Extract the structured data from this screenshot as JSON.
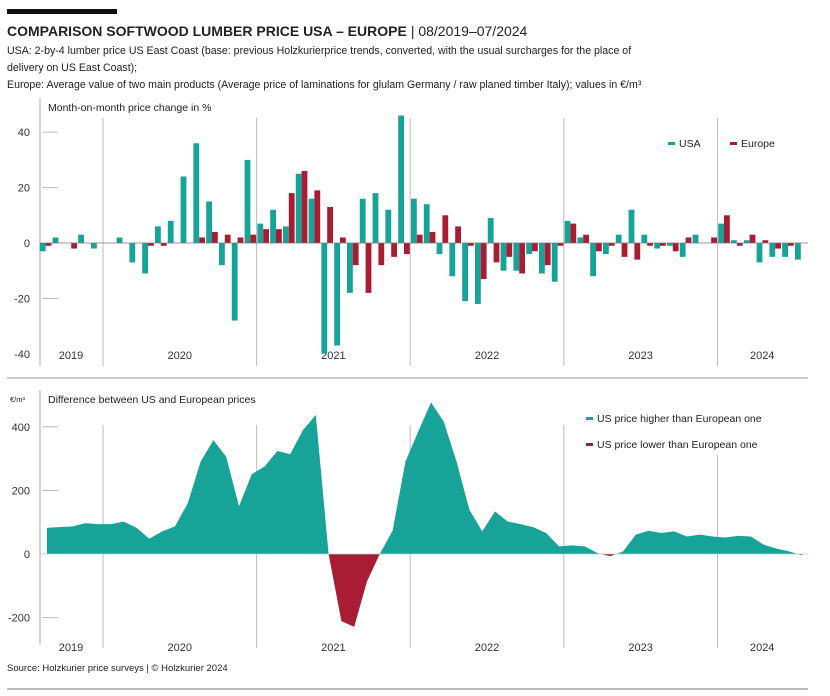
{
  "header": {
    "title": "COMPARISON SOFTWOOD LUMBER PRICE USA – EUROPE",
    "period": "| 08/2019–07/2024",
    "desc_line1": "USA: 2-by-4 lumber price US East Coast (base: previous Holzkurierprice trends, converted, with the usual surcharges for the place of",
    "desc_line2": "delivery on US East Coast);",
    "desc_line3": "Europe: Average value of two main products (Average price of laminations for glulam Germany / raw planed timber Italy); values in €/m³"
  },
  "footer": {
    "source": "Source: Holzkurier price surveys | © Holzkurier 2024"
  },
  "colors": {
    "teal": "#17a398",
    "red": "#a81d33",
    "axis": "#bbbbbb"
  },
  "chart_data": [
    {
      "type": "bar",
      "title": "Month-on-month price change in %",
      "ylabel": "",
      "ylim": [
        -40,
        46
      ],
      "yticks": [
        "40",
        "20",
        "0",
        "-20",
        "-40"
      ],
      "ytick_values": [
        40,
        20,
        0,
        -20,
        -40
      ],
      "year_labels": [
        "2019",
        "2020",
        "2021",
        "2022",
        "2023",
        "2024"
      ],
      "legend": "top-right",
      "categories": [
        "2019-08",
        "2019-09",
        "2019-10",
        "2019-11",
        "2019-12",
        "2020-01",
        "2020-02",
        "2020-03",
        "2020-04",
        "2020-05",
        "2020-06",
        "2020-07",
        "2020-08",
        "2020-09",
        "2020-10",
        "2020-11",
        "2020-12",
        "2021-01",
        "2021-02",
        "2021-03",
        "2021-04",
        "2021-05",
        "2021-06",
        "2021-07",
        "2021-08",
        "2021-09",
        "2021-10",
        "2021-11",
        "2021-12",
        "2022-01",
        "2022-02",
        "2022-03",
        "2022-04",
        "2022-05",
        "2022-06",
        "2022-07",
        "2022-08",
        "2022-09",
        "2022-10",
        "2022-11",
        "2022-12",
        "2023-01",
        "2023-02",
        "2023-03",
        "2023-04",
        "2023-05",
        "2023-06",
        "2023-07",
        "2023-08",
        "2023-09",
        "2023-10",
        "2023-11",
        "2023-12",
        "2024-01",
        "2024-02",
        "2024-03",
        "2024-04",
        "2024-05",
        "2024-06",
        "2024-07"
      ],
      "series": [
        {
          "name": "USA",
          "color": "#17a398",
          "values": [
            -3,
            2,
            0,
            3,
            -2,
            0,
            2,
            -7,
            -11,
            6,
            8,
            24,
            36,
            15,
            -8,
            -28,
            30,
            7,
            12,
            6,
            25,
            16,
            -40,
            -37,
            -18,
            16,
            18,
            12,
            46,
            16,
            14,
            -4,
            -12,
            -21,
            -22,
            9,
            -10,
            -10,
            -4,
            -11,
            -14,
            8,
            2,
            -12,
            -4,
            3,
            12,
            3,
            -2,
            -1,
            -5,
            3,
            0,
            7,
            1,
            1,
            -7,
            -5,
            -5,
            -6
          ]
        },
        {
          "name": "Europe",
          "color": "#a81d33",
          "values": [
            -1,
            0,
            -2,
            0,
            0,
            0,
            0,
            0,
            -1,
            -1,
            0,
            0,
            2,
            4,
            3,
            2,
            3,
            5,
            5,
            18,
            26,
            19,
            13,
            2,
            -8,
            -18,
            -8,
            -5,
            -4,
            3,
            4,
            10,
            6,
            -1,
            -13,
            -7,
            -5,
            -11,
            -3,
            -8,
            -1,
            7,
            3,
            -3,
            -1,
            -5,
            -6,
            -1,
            -1,
            -3,
            2,
            0,
            2,
            10,
            -1,
            3,
            1,
            -2,
            -1,
            0
          ]
        }
      ]
    },
    {
      "type": "area",
      "title": "Difference between US and European prices",
      "ylabel": "€/m³",
      "ylim": [
        -230,
        480
      ],
      "yticks": [
        "400",
        "200",
        "0",
        "-200"
      ],
      "ytick_values": [
        400,
        200,
        0,
        -200
      ],
      "year_labels": [
        "2019",
        "2020",
        "2021",
        "2022",
        "2023",
        "2024"
      ],
      "legend": "top-right",
      "legend_entries": [
        "US price higher than European one",
        "US price lower than European one"
      ],
      "categories_ref": "same months as first chart",
      "values": [
        82,
        85,
        87,
        97,
        94,
        94,
        102,
        82,
        48,
        71,
        87,
        160,
        290,
        358,
        306,
        150,
        251,
        275,
        324,
        314,
        390,
        437,
        0,
        -211,
        -229,
        -86,
        0,
        73,
        290,
        385,
        477,
        416,
        290,
        139,
        71,
        134,
        102,
        94,
        84,
        66,
        24,
        27,
        24,
        3,
        -7,
        8,
        61,
        73,
        66,
        71,
        55,
        61,
        55,
        52,
        57,
        55,
        29,
        17,
        8,
        -4
      ]
    }
  ]
}
